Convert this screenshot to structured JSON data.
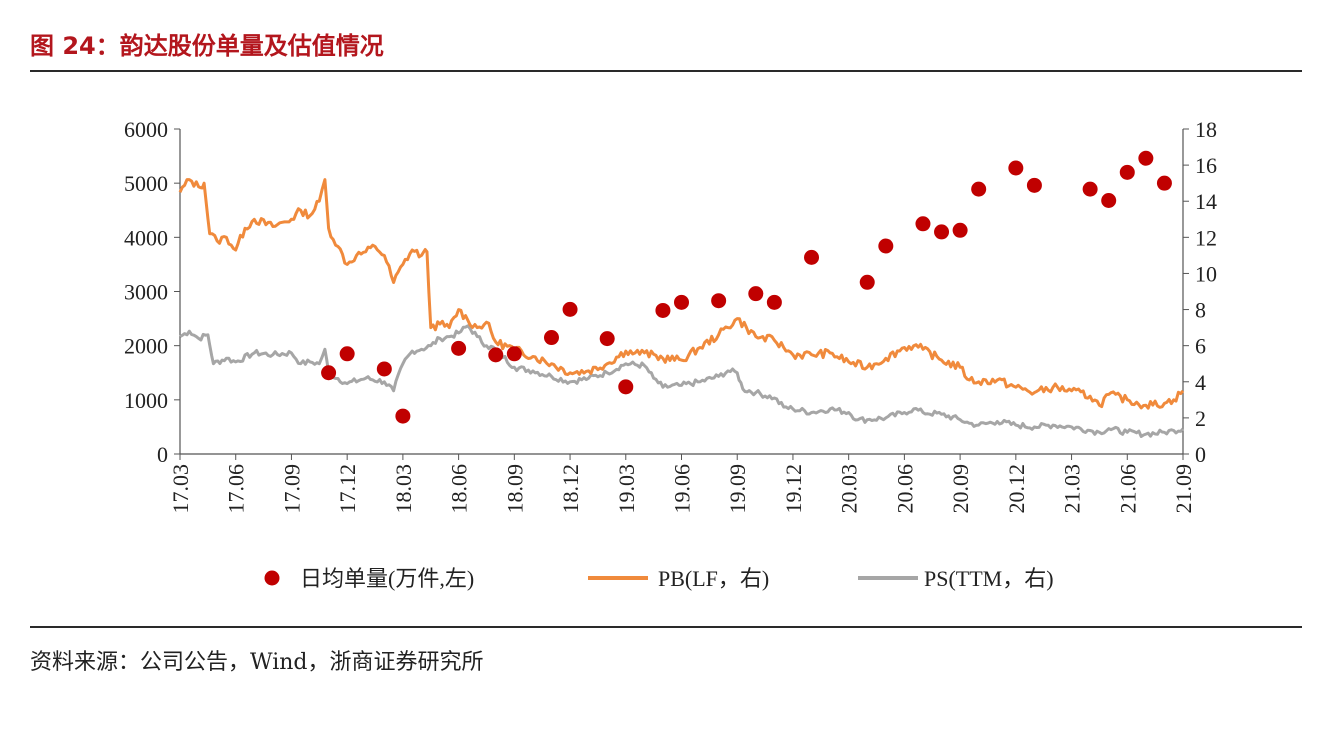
{
  "title": "图 24：韵达股份单量及估值情况",
  "source": "资料来源：公司公告，Wind，浙商证券研究所",
  "colors": {
    "title": "#b3161d",
    "dots": "#c00000",
    "pb": "#f08a3c",
    "ps": "#a6a6a6"
  },
  "chart_data": {
    "type": "line",
    "x_tick_labels": [
      "17.03",
      "17.06",
      "17.09",
      "17.12",
      "18.03",
      "18.06",
      "18.09",
      "18.12",
      "19.03",
      "19.06",
      "19.09",
      "19.12",
      "20.03",
      "20.06",
      "20.09",
      "20.12",
      "21.03",
      "21.06",
      "21.09"
    ],
    "y_left": {
      "min": 0,
      "max": 6000,
      "ticks": [
        "0",
        "1000",
        "2000",
        "3000",
        "4000",
        "5000",
        "6000"
      ]
    },
    "y_right": {
      "min": 0,
      "max": 18,
      "ticks": [
        "0",
        "2",
        "4",
        "6",
        "8",
        "10",
        "12",
        "14",
        "16",
        "18"
      ]
    },
    "legend": [
      {
        "label": "日均单量(万件,左)"
      },
      {
        "label": "PB(LF，右)"
      },
      {
        "label": "PS(TTM，右)"
      }
    ],
    "legend_position": "bottom",
    "grid": false,
    "series": [
      {
        "name": "日均单量(万件,左)",
        "axis": "left",
        "kind": "scatter",
        "points": [
          {
            "x": 8.0,
            "y": 1500
          },
          {
            "x": 9.0,
            "y": 1850
          },
          {
            "x": 11.0,
            "y": 1570
          },
          {
            "x": 12.0,
            "y": 700
          },
          {
            "x": 15.0,
            "y": 1950
          },
          {
            "x": 17.0,
            "y": 1830
          },
          {
            "x": 18.0,
            "y": 1850
          },
          {
            "x": 20.0,
            "y": 2150
          },
          {
            "x": 21.0,
            "y": 2670
          },
          {
            "x": 23.0,
            "y": 2130
          },
          {
            "x": 24.0,
            "y": 1240
          },
          {
            "x": 26.0,
            "y": 2650
          },
          {
            "x": 27.0,
            "y": 2800
          },
          {
            "x": 29.0,
            "y": 2830
          },
          {
            "x": 31.0,
            "y": 2960
          },
          {
            "x": 32.0,
            "y": 2800
          },
          {
            "x": 34.0,
            "y": 3630
          },
          {
            "x": 37.0,
            "y": 3170
          },
          {
            "x": 38.0,
            "y": 3840
          },
          {
            "x": 40.0,
            "y": 4250
          },
          {
            "x": 41.0,
            "y": 4100
          },
          {
            "x": 42.0,
            "y": 4130
          },
          {
            "x": 43.0,
            "y": 4890
          },
          {
            "x": 45.0,
            "y": 5280
          },
          {
            "x": 46.0,
            "y": 4960
          },
          {
            "x": 49.0,
            "y": 4890
          },
          {
            "x": 50.0,
            "y": 4680
          },
          {
            "x": 51.0,
            "y": 5200
          },
          {
            "x": 52.0,
            "y": 5460
          },
          {
            "x": 53.0,
            "y": 5000
          }
        ]
      },
      {
        "name": "PB(LF，右)",
        "axis": "right",
        "kind": "line",
        "points": [
          {
            "x": 0.0,
            "y": 14.5
          },
          {
            "x": 0.5,
            "y": 15.2
          },
          {
            "x": 1.0,
            "y": 14.8
          },
          {
            "x": 1.3,
            "y": 15.0
          },
          {
            "x": 1.6,
            "y": 12.2
          },
          {
            "x": 2.0,
            "y": 11.8
          },
          {
            "x": 2.5,
            "y": 12.0
          },
          {
            "x": 3.0,
            "y": 11.3
          },
          {
            "x": 3.5,
            "y": 12.5
          },
          {
            "x": 4.0,
            "y": 13.0
          },
          {
            "x": 5.0,
            "y": 12.6
          },
          {
            "x": 6.0,
            "y": 13.0
          },
          {
            "x": 6.5,
            "y": 13.5
          },
          {
            "x": 7.0,
            "y": 13.2
          },
          {
            "x": 7.5,
            "y": 14.0
          },
          {
            "x": 7.8,
            "y": 15.2
          },
          {
            "x": 8.0,
            "y": 12.5
          },
          {
            "x": 8.5,
            "y": 11.5
          },
          {
            "x": 9.0,
            "y": 10.5
          },
          {
            "x": 9.5,
            "y": 11.0
          },
          {
            "x": 10.0,
            "y": 11.2
          },
          {
            "x": 10.5,
            "y": 11.5
          },
          {
            "x": 11.0,
            "y": 11.0
          },
          {
            "x": 11.5,
            "y": 9.5
          },
          {
            "x": 12.0,
            "y": 10.5
          },
          {
            "x": 12.5,
            "y": 11.3
          },
          {
            "x": 13.0,
            "y": 11.0
          },
          {
            "x": 13.3,
            "y": 11.2
          },
          {
            "x": 13.5,
            "y": 7.0
          },
          {
            "x": 14.0,
            "y": 7.2
          },
          {
            "x": 14.5,
            "y": 7.0
          },
          {
            "x": 15.0,
            "y": 8.0
          },
          {
            "x": 15.5,
            "y": 7.4
          },
          {
            "x": 16.0,
            "y": 7.0
          },
          {
            "x": 16.5,
            "y": 7.3
          },
          {
            "x": 17.0,
            "y": 6.2
          },
          {
            "x": 18.0,
            "y": 5.8
          },
          {
            "x": 19.0,
            "y": 5.4
          },
          {
            "x": 20.0,
            "y": 5.0
          },
          {
            "x": 21.0,
            "y": 4.5
          },
          {
            "x": 22.0,
            "y": 4.6
          },
          {
            "x": 23.0,
            "y": 5.0
          },
          {
            "x": 24.0,
            "y": 5.7
          },
          {
            "x": 24.5,
            "y": 5.6
          },
          {
            "x": 25.0,
            "y": 5.6
          },
          {
            "x": 26.0,
            "y": 5.3
          },
          {
            "x": 27.0,
            "y": 5.2
          },
          {
            "x": 28.0,
            "y": 5.9
          },
          {
            "x": 29.0,
            "y": 6.6
          },
          {
            "x": 30.0,
            "y": 7.5
          },
          {
            "x": 30.5,
            "y": 7.0
          },
          {
            "x": 31.0,
            "y": 6.5
          },
          {
            "x": 32.0,
            "y": 6.3
          },
          {
            "x": 32.5,
            "y": 5.9
          },
          {
            "x": 33.0,
            "y": 5.5
          },
          {
            "x": 34.0,
            "y": 5.5
          },
          {
            "x": 35.0,
            "y": 5.6
          },
          {
            "x": 36.0,
            "y": 5.1
          },
          {
            "x": 37.0,
            "y": 4.8
          },
          {
            "x": 38.0,
            "y": 5.3
          },
          {
            "x": 39.0,
            "y": 5.9
          },
          {
            "x": 39.5,
            "y": 6.0
          },
          {
            "x": 40.0,
            "y": 5.8
          },
          {
            "x": 41.0,
            "y": 5.2
          },
          {
            "x": 42.0,
            "y": 4.8
          },
          {
            "x": 42.5,
            "y": 4.1
          },
          {
            "x": 43.0,
            "y": 4.0
          },
          {
            "x": 44.0,
            "y": 4.1
          },
          {
            "x": 45.0,
            "y": 3.7
          },
          {
            "x": 46.0,
            "y": 3.4
          },
          {
            "x": 47.0,
            "y": 3.7
          },
          {
            "x": 48.0,
            "y": 3.5
          },
          {
            "x": 49.0,
            "y": 3.2
          },
          {
            "x": 49.5,
            "y": 2.7
          },
          {
            "x": 50.0,
            "y": 3.3
          },
          {
            "x": 51.0,
            "y": 3.0
          },
          {
            "x": 52.0,
            "y": 2.7
          },
          {
            "x": 53.0,
            "y": 2.8
          },
          {
            "x": 53.5,
            "y": 3.0
          },
          {
            "x": 54.0,
            "y": 3.5
          }
        ]
      },
      {
        "name": "PS(TTM，右)",
        "axis": "right",
        "kind": "line",
        "points": [
          {
            "x": 0.0,
            "y": 6.5
          },
          {
            "x": 0.5,
            "y": 6.8
          },
          {
            "x": 1.0,
            "y": 6.4
          },
          {
            "x": 1.5,
            "y": 6.6
          },
          {
            "x": 1.8,
            "y": 5.0
          },
          {
            "x": 2.5,
            "y": 5.3
          },
          {
            "x": 3.0,
            "y": 5.1
          },
          {
            "x": 4.0,
            "y": 5.6
          },
          {
            "x": 5.0,
            "y": 5.5
          },
          {
            "x": 6.0,
            "y": 5.6
          },
          {
            "x": 6.5,
            "y": 5.0
          },
          {
            "x": 7.0,
            "y": 5.1
          },
          {
            "x": 7.5,
            "y": 5.0
          },
          {
            "x": 7.8,
            "y": 5.8
          },
          {
            "x": 8.0,
            "y": 4.5
          },
          {
            "x": 9.0,
            "y": 3.9
          },
          {
            "x": 10.0,
            "y": 4.2
          },
          {
            "x": 11.0,
            "y": 4.0
          },
          {
            "x": 11.5,
            "y": 3.5
          },
          {
            "x": 12.0,
            "y": 5.0
          },
          {
            "x": 12.5,
            "y": 5.7
          },
          {
            "x": 13.0,
            "y": 5.8
          },
          {
            "x": 13.5,
            "y": 6.0
          },
          {
            "x": 14.0,
            "y": 6.4
          },
          {
            "x": 14.5,
            "y": 6.5
          },
          {
            "x": 15.0,
            "y": 6.7
          },
          {
            "x": 15.5,
            "y": 7.1
          },
          {
            "x": 16.0,
            "y": 6.5
          },
          {
            "x": 16.5,
            "y": 6.0
          },
          {
            "x": 17.0,
            "y": 5.8
          },
          {
            "x": 18.0,
            "y": 4.8
          },
          {
            "x": 19.0,
            "y": 4.6
          },
          {
            "x": 20.0,
            "y": 4.3
          },
          {
            "x": 21.0,
            "y": 4.0
          },
          {
            "x": 22.0,
            "y": 4.2
          },
          {
            "x": 23.0,
            "y": 4.5
          },
          {
            "x": 24.0,
            "y": 5.0
          },
          {
            "x": 25.0,
            "y": 4.9
          },
          {
            "x": 25.5,
            "y": 4.2
          },
          {
            "x": 26.0,
            "y": 3.7
          },
          {
            "x": 27.0,
            "y": 3.8
          },
          {
            "x": 28.0,
            "y": 4.0
          },
          {
            "x": 29.0,
            "y": 4.3
          },
          {
            "x": 29.5,
            "y": 4.6
          },
          {
            "x": 30.0,
            "y": 4.5
          },
          {
            "x": 30.3,
            "y": 3.6
          },
          {
            "x": 31.0,
            "y": 3.4
          },
          {
            "x": 32.0,
            "y": 3.1
          },
          {
            "x": 32.5,
            "y": 2.6
          },
          {
            "x": 33.0,
            "y": 2.5
          },
          {
            "x": 34.0,
            "y": 2.3
          },
          {
            "x": 35.0,
            "y": 2.5
          },
          {
            "x": 36.0,
            "y": 2.3
          },
          {
            "x": 36.5,
            "y": 1.9
          },
          {
            "x": 37.0,
            "y": 1.9
          },
          {
            "x": 38.0,
            "y": 2.0
          },
          {
            "x": 39.0,
            "y": 2.3
          },
          {
            "x": 39.5,
            "y": 2.5
          },
          {
            "x": 40.0,
            "y": 2.3
          },
          {
            "x": 41.0,
            "y": 2.2
          },
          {
            "x": 42.0,
            "y": 1.9
          },
          {
            "x": 42.5,
            "y": 1.7
          },
          {
            "x": 43.0,
            "y": 1.6
          },
          {
            "x": 44.0,
            "y": 1.8
          },
          {
            "x": 45.0,
            "y": 1.6
          },
          {
            "x": 46.0,
            "y": 1.5
          },
          {
            "x": 47.0,
            "y": 1.6
          },
          {
            "x": 48.0,
            "y": 1.5
          },
          {
            "x": 49.0,
            "y": 1.3
          },
          {
            "x": 49.5,
            "y": 1.2
          },
          {
            "x": 50.0,
            "y": 1.4
          },
          {
            "x": 51.0,
            "y": 1.2
          },
          {
            "x": 52.0,
            "y": 1.1
          },
          {
            "x": 53.0,
            "y": 1.2
          },
          {
            "x": 53.5,
            "y": 1.3
          },
          {
            "x": 54.0,
            "y": 1.4
          }
        ]
      }
    ]
  }
}
